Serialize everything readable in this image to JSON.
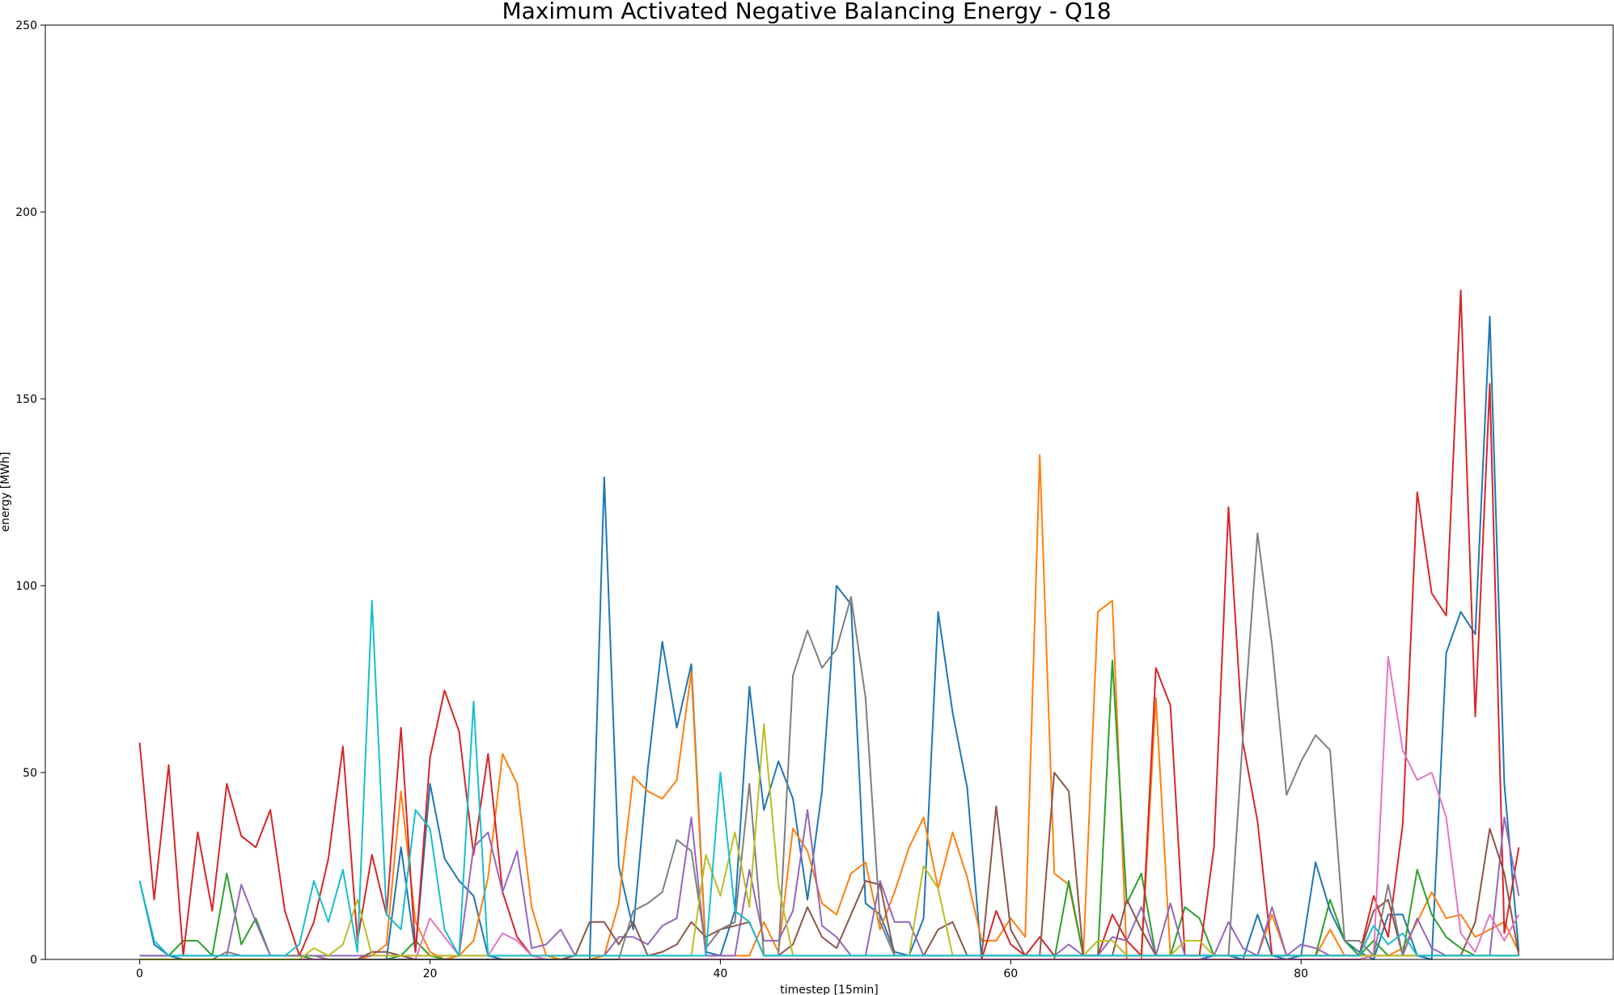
{
  "chart_data": {
    "type": "line",
    "title": "Maximum Activated Negative Balancing Energy - Q18",
    "xlabel": "timestep [15min]",
    "ylabel": "energy [MWh]",
    "xlim": [
      -6.5,
      101.5
    ],
    "ylim": [
      0,
      250
    ],
    "xticks": [
      0,
      20,
      40,
      60,
      80
    ],
    "yticks": [
      0,
      50,
      100,
      150,
      200,
      250
    ],
    "grid": false,
    "legend": "none",
    "series": [
      {
        "color": "#1f77b4",
        "values": [
          21,
          4,
          1,
          0,
          0,
          0,
          0,
          0,
          0,
          0,
          0,
          0,
          0,
          0,
          0,
          0,
          0,
          0,
          30,
          2,
          47,
          27,
          21,
          17,
          1,
          0,
          0,
          0,
          0,
          0,
          0,
          0,
          129,
          25,
          8,
          51,
          85,
          62,
          79,
          2,
          1,
          13,
          73,
          40,
          53,
          43,
          16,
          45,
          100,
          95,
          15,
          12,
          2,
          1,
          11,
          93,
          66,
          46,
          0,
          0,
          0,
          0,
          0,
          0,
          0,
          0,
          0,
          0,
          0,
          0,
          0,
          0,
          0,
          0,
          1,
          1,
          0,
          12,
          1,
          0,
          1,
          26,
          13,
          5,
          2,
          0,
          12,
          12,
          1,
          0,
          82,
          93,
          87,
          172,
          47,
          2
        ]
      },
      {
        "color": "#ff7f0e",
        "values": [
          0,
          0,
          0,
          0,
          0,
          0,
          0,
          0,
          0,
          0,
          0,
          0,
          0,
          0,
          0,
          0,
          1,
          4,
          45,
          10,
          2,
          0,
          1,
          5,
          22,
          55,
          47,
          14,
          1,
          0,
          0,
          0,
          1,
          15,
          49,
          45,
          43,
          48,
          77,
          1,
          1,
          1,
          1,
          10,
          2,
          35,
          29,
          15,
          12,
          23,
          26,
          8,
          18,
          30,
          38,
          19,
          34,
          22,
          5,
          5,
          11,
          6,
          135,
          23,
          20,
          1,
          93,
          96,
          0,
          0,
          70,
          1,
          1,
          1,
          1,
          1,
          1,
          1,
          12,
          1,
          1,
          1,
          8,
          1,
          1,
          1,
          1,
          3,
          10,
          18,
          11,
          12,
          6,
          8,
          10,
          2
        ]
      },
      {
        "color": "#2ca02c",
        "values": [
          1,
          1,
          1,
          5,
          5,
          1,
          23,
          4,
          11,
          1,
          1,
          1,
          0,
          0,
          0,
          0,
          0,
          0,
          1,
          5,
          1,
          0,
          0,
          0,
          0,
          0,
          0,
          0,
          0,
          0,
          0,
          0,
          0,
          0,
          0,
          0,
          0,
          0,
          0,
          0,
          0,
          0,
          0,
          0,
          0,
          0,
          0,
          0,
          0,
          0,
          0,
          0,
          0,
          0,
          0,
          0,
          0,
          0,
          0,
          0,
          0,
          0,
          0,
          0,
          21,
          1,
          1,
          80,
          15,
          23,
          1,
          1,
          14,
          11,
          1,
          1,
          1,
          1,
          1,
          1,
          1,
          1,
          16,
          5,
          1,
          5,
          1,
          1,
          24,
          12,
          6,
          3,
          1,
          1,
          1,
          1
        ]
      },
      {
        "color": "#d62728",
        "values": [
          58,
          16,
          52,
          1,
          34,
          13,
          47,
          33,
          30,
          40,
          13,
          1,
          10,
          27,
          57,
          5,
          28,
          12,
          62,
          2,
          54,
          72,
          61,
          28,
          55,
          18,
          6,
          1,
          0,
          0,
          0,
          0,
          0,
          0,
          0,
          0,
          0,
          0,
          0,
          0,
          0,
          0,
          0,
          0,
          0,
          0,
          0,
          0,
          0,
          0,
          0,
          0,
          0,
          0,
          0,
          0,
          0,
          0,
          0,
          13,
          4,
          1,
          6,
          1,
          1,
          1,
          1,
          12,
          5,
          1,
          78,
          68,
          1,
          1,
          30,
          121,
          58,
          37,
          1,
          1,
          1,
          1,
          1,
          1,
          1,
          17,
          6,
          36,
          125,
          98,
          92,
          179,
          65,
          154,
          7,
          30
        ]
      },
      {
        "color": "#9467bd",
        "values": [
          1,
          1,
          1,
          1,
          1,
          1,
          1,
          20,
          10,
          1,
          1,
          1,
          1,
          1,
          1,
          1,
          1,
          1,
          1,
          1,
          1,
          1,
          1,
          30,
          34,
          18,
          29,
          3,
          4,
          8,
          1,
          1,
          1,
          6,
          6,
          4,
          9,
          11,
          38,
          1,
          1,
          1,
          24,
          5,
          5,
          13,
          40,
          9,
          6,
          1,
          1,
          21,
          10,
          10,
          1,
          1,
          1,
          1,
          1,
          1,
          1,
          1,
          1,
          1,
          4,
          1,
          1,
          6,
          5,
          14,
          1,
          15,
          1,
          1,
          1,
          10,
          3,
          1,
          14,
          1,
          4,
          3,
          1,
          1,
          1,
          1,
          1,
          1,
          11,
          3,
          1,
          1,
          1,
          1,
          38,
          17
        ]
      },
      {
        "color": "#8c564b",
        "values": [
          0,
          0,
          0,
          0,
          0,
          0,
          0,
          0,
          0,
          0,
          0,
          0,
          0,
          0,
          0,
          0,
          2,
          2,
          1,
          0,
          0,
          0,
          0,
          0,
          0,
          0,
          0,
          0,
          0,
          0,
          1,
          10,
          10,
          4,
          10,
          1,
          2,
          4,
          10,
          6,
          8,
          9,
          10,
          1,
          1,
          4,
          14,
          6,
          3,
          12,
          21,
          20,
          1,
          1,
          1,
          8,
          10,
          1,
          1,
          41,
          8,
          1,
          1,
          50,
          45,
          1,
          1,
          1,
          16,
          8,
          1,
          1,
          1,
          1,
          1,
          1,
          1,
          1,
          1,
          1,
          1,
          1,
          1,
          1,
          1,
          13,
          16,
          1,
          1,
          1,
          1,
          1,
          10,
          35,
          23,
          1
        ]
      },
      {
        "color": "#e377c2",
        "values": [
          0,
          0,
          0,
          0,
          0,
          0,
          0,
          0,
          0,
          0,
          0,
          0,
          0,
          0,
          0,
          0,
          0,
          0,
          0,
          0,
          11,
          6,
          1,
          1,
          1,
          7,
          5,
          1,
          0,
          0,
          0,
          0,
          0,
          0,
          0,
          0,
          0,
          0,
          0,
          0,
          0,
          0,
          0,
          0,
          0,
          0,
          0,
          0,
          0,
          0,
          0,
          0,
          0,
          0,
          0,
          0,
          0,
          0,
          0,
          0,
          0,
          0,
          0,
          0,
          0,
          0,
          0,
          0,
          0,
          0,
          0,
          0,
          0,
          0,
          0,
          0,
          0,
          0,
          0,
          0,
          0,
          0,
          0,
          0,
          0,
          1,
          81,
          56,
          48,
          50,
          38,
          7,
          2,
          12,
          5,
          12
        ]
      },
      {
        "color": "#7f7f7f",
        "values": [
          0,
          0,
          0,
          0,
          0,
          0,
          2,
          1,
          1,
          1,
          1,
          1,
          1,
          0,
          0,
          0,
          0,
          0,
          0,
          0,
          0,
          0,
          0,
          0,
          0,
          0,
          0,
          0,
          0,
          0,
          0,
          0,
          0,
          0,
          13,
          15,
          18,
          32,
          29,
          3,
          8,
          10,
          47,
          1,
          1,
          76,
          88,
          78,
          83,
          97,
          70,
          10,
          1,
          1,
          1,
          1,
          1,
          1,
          1,
          1,
          1,
          1,
          1,
          1,
          1,
          1,
          1,
          1,
          1,
          1,
          1,
          1,
          1,
          1,
          1,
          1,
          60,
          114,
          84,
          44,
          53,
          60,
          56,
          5,
          5,
          1,
          20,
          1,
          1,
          1,
          1,
          1,
          1,
          1,
          1,
          1
        ]
      },
      {
        "color": "#bcbd22",
        "values": [
          0,
          0,
          0,
          0,
          0,
          0,
          0,
          0,
          0,
          0,
          0,
          0,
          3,
          1,
          4,
          16,
          1,
          1,
          1,
          1,
          1,
          1,
          1,
          1,
          1,
          1,
          1,
          1,
          1,
          1,
          1,
          1,
          1,
          1,
          1,
          1,
          1,
          1,
          1,
          28,
          17,
          34,
          14,
          63,
          20,
          1,
          1,
          1,
          1,
          1,
          1,
          1,
          1,
          1,
          25,
          19,
          1,
          1,
          1,
          1,
          1,
          1,
          1,
          1,
          1,
          1,
          5,
          5,
          1,
          1,
          1,
          1,
          5,
          5,
          1,
          1,
          1,
          1,
          1,
          1,
          1,
          1,
          1,
          1,
          1,
          1,
          1,
          1,
          1,
          1,
          1,
          1,
          1,
          1,
          1,
          1
        ]
      },
      {
        "color": "#17becf",
        "values": [
          21,
          5,
          1,
          1,
          1,
          1,
          1,
          1,
          1,
          1,
          1,
          4,
          21,
          10,
          24,
          2,
          96,
          12,
          8,
          40,
          35,
          8,
          1,
          69,
          1,
          1,
          1,
          1,
          1,
          1,
          1,
          1,
          1,
          1,
          1,
          1,
          1,
          1,
          1,
          1,
          50,
          13,
          10,
          1,
          1,
          1,
          1,
          1,
          1,
          1,
          1,
          1,
          1,
          1,
          1,
          1,
          1,
          1,
          1,
          1,
          1,
          1,
          1,
          1,
          1,
          1,
          1,
          1,
          1,
          1,
          1,
          1,
          1,
          1,
          1,
          1,
          1,
          1,
          1,
          1,
          1,
          1,
          1,
          1,
          1,
          9,
          4,
          7,
          1,
          1,
          1,
          1,
          1,
          1,
          1,
          1
        ]
      }
    ]
  }
}
